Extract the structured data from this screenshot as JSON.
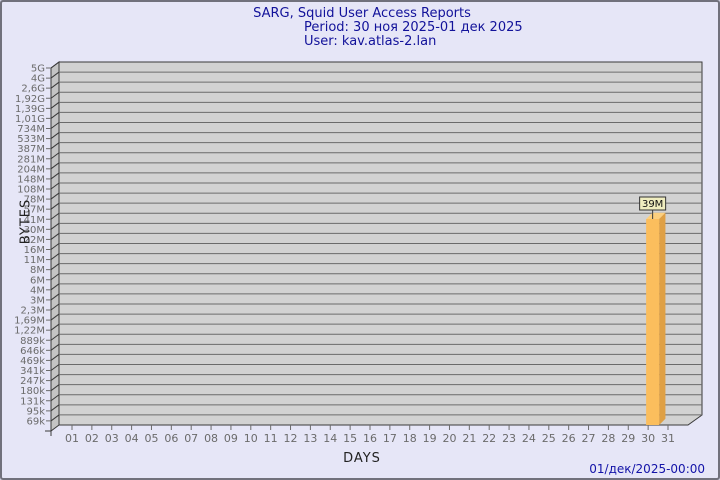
{
  "header": {
    "title": "SARG, Squid User Access Reports",
    "period": "Period: 30 ноя 2025-01 дек 2025",
    "user": "User: kav.atlas-2.lan"
  },
  "footer": {
    "timestamp": "01/дек/2025-00:00"
  },
  "chart_data": {
    "type": "bar",
    "title": "SARG, Squid User Access Reports",
    "subtitle": "Period: 30 ноя 2025-01 дек 2025",
    "user": "kav.atlas-2.lan",
    "xlabel": "DAYS",
    "ylabel": "BYTES",
    "x_axis": {
      "ticks": [
        "01",
        "02",
        "03",
        "04",
        "05",
        "06",
        "07",
        "08",
        "09",
        "10",
        "11",
        "12",
        "13",
        "14",
        "15",
        "16",
        "17",
        "18",
        "19",
        "20",
        "21",
        "22",
        "23",
        "24",
        "25",
        "26",
        "27",
        "28",
        "29",
        "30",
        "31"
      ]
    },
    "y_axis": {
      "scale": "log",
      "ticks": [
        "5G",
        "4G",
        "2,6G",
        "1,92G",
        "1,39G",
        "1,01G",
        "734M",
        "533M",
        "387M",
        "281M",
        "204M",
        "148M",
        "108M",
        "78M",
        "57M",
        "41M",
        "30M",
        "22M",
        "16M",
        "11M",
        "8M",
        "6M",
        "4M",
        "3M",
        "2,3M",
        "1,69M",
        "1,22M",
        "889k",
        "646k",
        "469k",
        "341k",
        "247k",
        "180k",
        "131k",
        "95k",
        "69k"
      ],
      "range": [
        "69k",
        "5G"
      ]
    },
    "categories": [
      "01",
      "02",
      "03",
      "04",
      "05",
      "06",
      "07",
      "08",
      "09",
      "10",
      "11",
      "12",
      "13",
      "14",
      "15",
      "16",
      "17",
      "18",
      "19",
      "20",
      "21",
      "22",
      "23",
      "24",
      "25",
      "26",
      "27",
      "28",
      "29",
      "30",
      "31"
    ],
    "values": [
      0,
      0,
      0,
      0,
      0,
      0,
      0,
      0,
      0,
      0,
      0,
      0,
      0,
      0,
      0,
      0,
      0,
      0,
      0,
      0,
      0,
      0,
      0,
      0,
      0,
      0,
      0,
      0,
      0,
      39000000,
      0
    ],
    "bars": [
      {
        "x_tick": "30",
        "label": "39M",
        "value_bytes": 39000000
      }
    ],
    "grid": true,
    "legend": "none",
    "colors": {
      "page_bg": "#E6E6F7",
      "plot_bg": "#D2D2D2",
      "wall": "#C4C4C4",
      "grid_line": "#6B6B6B",
      "frame": "#3A3A3A",
      "tick_text": "#6B6B6B",
      "bar_front": "#FBBE5D",
      "bar_side": "#DFA045",
      "bar_top": "#FCCF7E",
      "value_box_bg": "#EFEDBF",
      "value_box_border": "#333333",
      "value_text": "#111111"
    }
  }
}
